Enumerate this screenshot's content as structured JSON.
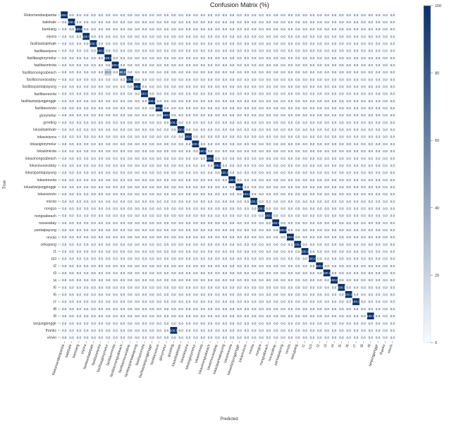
{
  "chart_data": {
    "type": "heatmap",
    "title": "Confusion Matrix (%)",
    "xlabel": "Predicted",
    "ylabel": "True",
    "labels": [
      "Rekomendasipantai",
      "balebale",
      "barelang",
      "eiyora",
      "fasilitasbalebale",
      "fasilitaseiyora",
      "fasilitasglorymelur",
      "fasilitasmirota",
      "fasilitasnongsabeach",
      "fasilitasnuvasabay",
      "fasilitaspantaipayung",
      "fasilitasrevola",
      "fasilitastanjungpinggir",
      "fasilitasviovio",
      "glorymelur",
      "greeting",
      "lokasibalebale",
      "lokasieiyora",
      "lokasiglorymelur",
      "lokasimirota",
      "lokasinongsabeach",
      "lokasinuvasabay",
      "lokasipantaipayung",
      "lokasirevola",
      "lokasitanjungpinggir",
      "lokasiviovio",
      "mirota",
      "nongsa",
      "nongsabeach",
      "nuvasabay",
      "pantaipayung",
      "revola",
      "sekupang",
      "t1",
      "t10",
      "t2",
      "t3",
      "t4",
      "t5",
      "t6",
      "t7",
      "t8",
      "t9",
      "tanjungpinggir",
      "thanks",
      "viovio"
    ],
    "value_format": "0.0",
    "diagonal_value": 100.0,
    "off_diagonal_value": 0.0,
    "nonzero_cells": [
      {
        "true": "fasilitasnongsabeach",
        "predicted": "fasilitasglorymelur",
        "value": 20.0
      },
      {
        "true": "fasilitasnongsabeach",
        "predicted": "fasilitasnongsabeach",
        "value": 80.0
      },
      {
        "true": "nongsa",
        "predicted": "nongsabeach",
        "value": 0.0
      },
      {
        "true": "t8",
        "predicted": "t8",
        "value": 0.0
      },
      {
        "true": "tanjungpinggir",
        "predicted": "tanjungpinggir",
        "value": 0.0
      },
      {
        "true": "thanks",
        "predicted": "thanks",
        "value": 0.0
      },
      {
        "true": "thanks",
        "predicted": "greeting",
        "value": 100.0
      },
      {
        "true": "viovio",
        "predicted": "viovio",
        "value": 0.0
      }
    ],
    "colorbar": {
      "min": 0,
      "max": 100,
      "ticks": [
        0,
        20,
        40,
        60,
        80,
        100
      ],
      "low_color": "#f7fbff",
      "high_color": "#08306b"
    },
    "grid": false,
    "legend": "colorbar-right"
  }
}
